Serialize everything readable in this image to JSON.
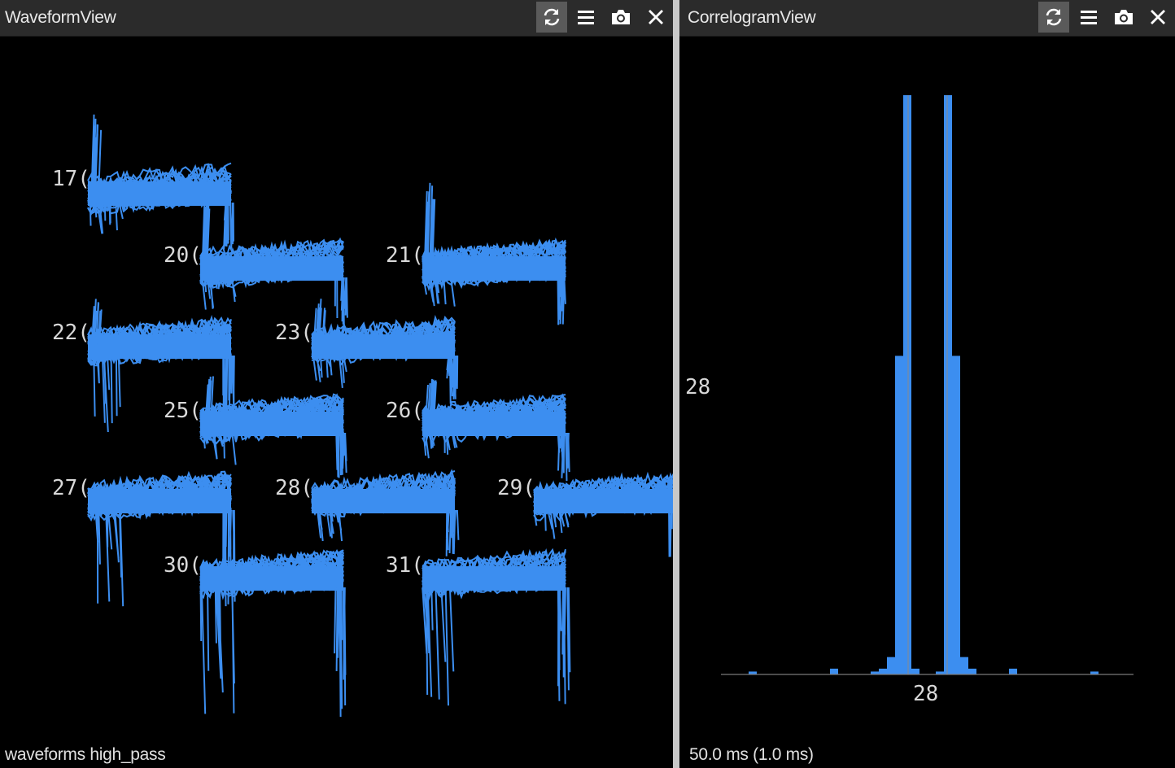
{
  "waveform_view": {
    "title": "WaveformView",
    "status": "waveforms high_pass",
    "toolbar": [
      "refresh-icon",
      "menu-icon",
      "camera-icon",
      "close-icon"
    ],
    "trace_color": "#3c8ef0",
    "channels": [
      "17(",
      "20(",
      "21(",
      "22(",
      "23(",
      "25(",
      "26(",
      "27(",
      "28(",
      "29(",
      "30(",
      "31("
    ]
  },
  "correlogram_view": {
    "title": "CorrelogramView",
    "status": "50.0 ms (1.0 ms)",
    "toolbar": [
      "refresh-icon",
      "menu-icon",
      "camera-icon",
      "close-icon"
    ],
    "bar_color": "#3c8ef0",
    "row_label": "28",
    "col_label": "28"
  },
  "chart_data": {
    "type": "bar",
    "title": "",
    "window_ms": 50.0,
    "bin_ms": 1.0,
    "x_range_ms": [
      -25,
      25
    ],
    "bins": [
      {
        "lag_ms": -22,
        "count": 0.5
      },
      {
        "lag_ms": -12,
        "count": 1
      },
      {
        "lag_ms": -7,
        "count": 0.5
      },
      {
        "lag_ms": -6,
        "count": 1
      },
      {
        "lag_ms": -5,
        "count": 3
      },
      {
        "lag_ms": -4,
        "count": 55
      },
      {
        "lag_ms": -3,
        "count": 100
      },
      {
        "lag_ms": -2,
        "count": 1
      },
      {
        "lag_ms": -1,
        "count": 0
      },
      {
        "lag_ms": 0,
        "count": 0
      },
      {
        "lag_ms": 1,
        "count": 0.5
      },
      {
        "lag_ms": 2,
        "count": 100
      },
      {
        "lag_ms": 3,
        "count": 55
      },
      {
        "lag_ms": 4,
        "count": 3
      },
      {
        "lag_ms": 5,
        "count": 1
      },
      {
        "lag_ms": 10,
        "count": 1
      },
      {
        "lag_ms": 20,
        "count": 0.5
      }
    ]
  }
}
